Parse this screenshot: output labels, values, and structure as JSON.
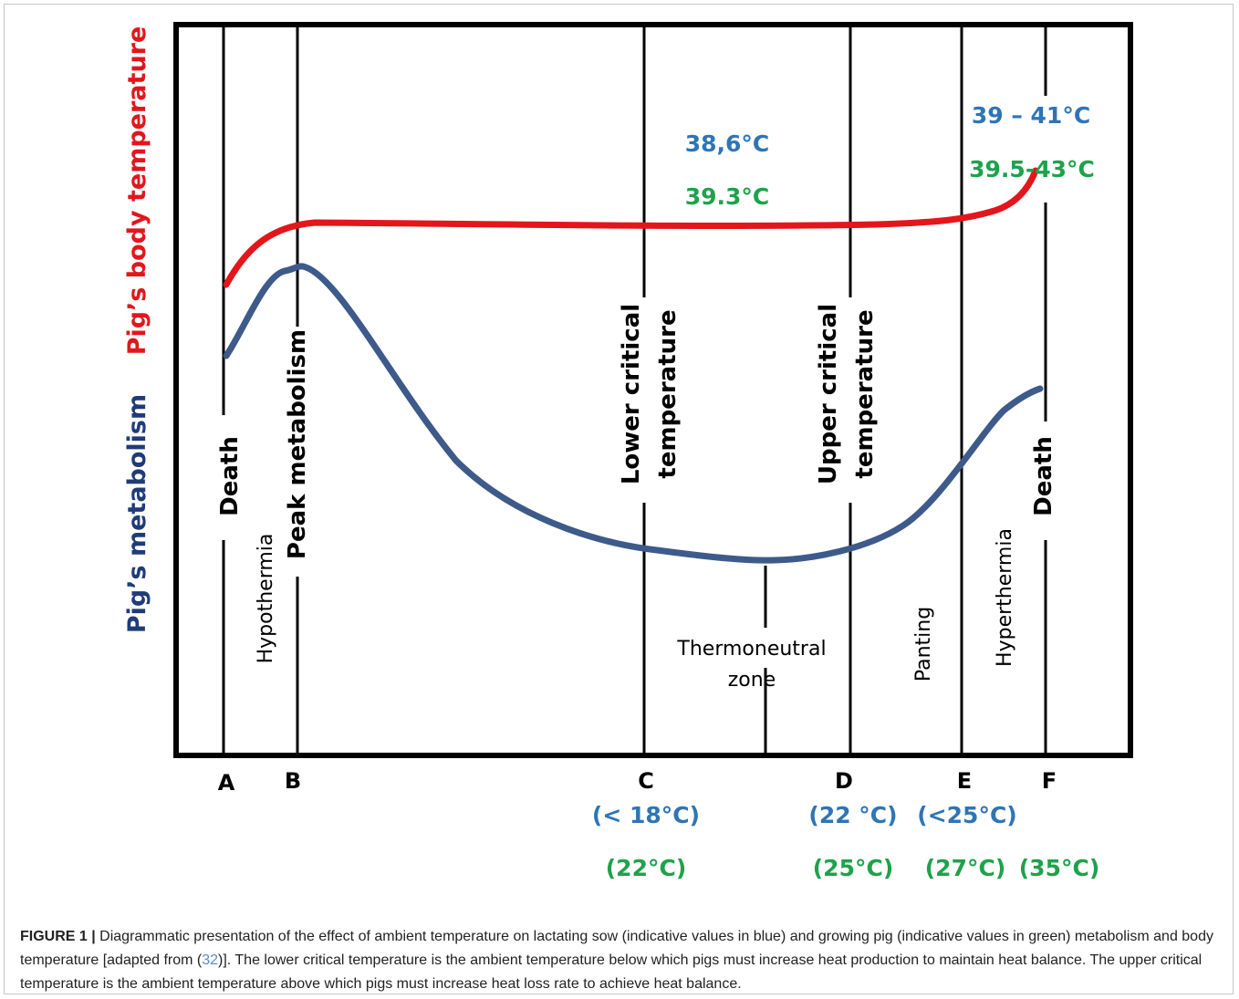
{
  "colors": {
    "blue_values": "#2e75b6",
    "green_values": "#1ea24b",
    "body_temp_curve": "#e3161b",
    "metabolism_curve": "#3d5a8a",
    "frame": "#000000"
  },
  "y_axis": {
    "body_temperature_label": "Pig’s body temperature",
    "metabolism_label": "Pig’s metabolism"
  },
  "vertical_labels": {
    "death_left": "Death",
    "peak_metabolism": "Peak metabolism",
    "lower_critical_line1": "Lower critical",
    "lower_critical_line2": "temperature",
    "upper_critical_line1": "Upper critical",
    "upper_critical_line2": "temperature",
    "death_right": "Death"
  },
  "zones": {
    "hypothermia": "Hypothermia",
    "thermoneutral_line1": "Thermoneutral",
    "thermoneutral_line2": "zone",
    "panting": "Panting",
    "hyperthermia": "Hyperthermia"
  },
  "temperatures": {
    "mid_sow": "38,6°C",
    "mid_growing": "39.3°C",
    "high_sow": "39 – 41°C",
    "high_growing": "39.5-43°C"
  },
  "points": {
    "a": "A",
    "b": "B",
    "c": "C",
    "d": "D",
    "e": "E",
    "f": "F"
  },
  "ambient": {
    "c_sow": "(< 18°C)",
    "c_growing": "(22°C)",
    "d_sow": "(22 °C)",
    "d_growing": "(25°C)",
    "e_sow": "(<25°C)",
    "e_growing": "(27°C)",
    "f_growing": "(35°C)"
  },
  "caption": {
    "label": "FIGURE 1 |",
    "text_before_ref": " Diagrammatic presentation of the effect of ambient temperature on lactating sow (indicative values in blue) and growing pig (indicative values in green) metabolism and body temperature [adapted from (",
    "ref": "32",
    "text_after_ref": ")]. The lower critical temperature is the ambient temperature below which pigs must increase heat production to maintain heat balance. The upper critical temperature is the ambient temperature above which pigs must increase heat loss rate to achieve heat balance."
  }
}
